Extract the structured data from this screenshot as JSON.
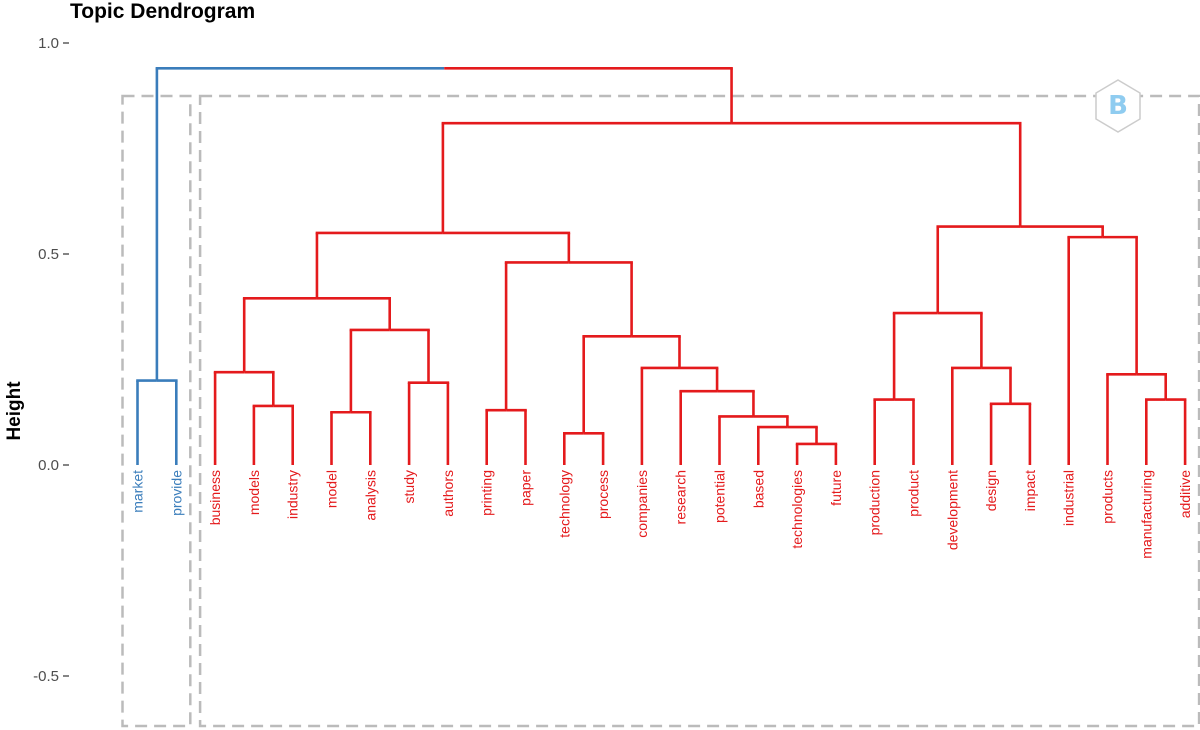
{
  "chart_data": {
    "type": "dendrogram",
    "title": "Topic Dendrogram",
    "ylabel": "Height",
    "xlabel": "",
    "ylim": [
      -0.6,
      1.0
    ],
    "yticks": [
      "-0.5",
      "0.0",
      "0.5",
      "1.0"
    ],
    "ytick_values": [
      -0.5,
      0.0,
      0.5,
      1.0
    ],
    "grid": false,
    "colors": {
      "cluster1": "#3a7dbb",
      "cluster2": "#e41a1c",
      "rect": "#bbbbbb",
      "badge": "#55aadd"
    },
    "leaves": [
      {
        "label": "market",
        "cluster": 1
      },
      {
        "label": "provide",
        "cluster": 1
      },
      {
        "label": "business",
        "cluster": 2
      },
      {
        "label": "models",
        "cluster": 2
      },
      {
        "label": "industry",
        "cluster": 2
      },
      {
        "label": "model",
        "cluster": 2
      },
      {
        "label": "analysis",
        "cluster": 2
      },
      {
        "label": "study",
        "cluster": 2
      },
      {
        "label": "authors",
        "cluster": 2
      },
      {
        "label": "printing",
        "cluster": 2
      },
      {
        "label": "paper",
        "cluster": 2
      },
      {
        "label": "technology",
        "cluster": 2
      },
      {
        "label": "process",
        "cluster": 2
      },
      {
        "label": "companies",
        "cluster": 2
      },
      {
        "label": "research",
        "cluster": 2
      },
      {
        "label": "potential",
        "cluster": 2
      },
      {
        "label": "based",
        "cluster": 2
      },
      {
        "label": "technologies",
        "cluster": 2
      },
      {
        "label": "future",
        "cluster": 2
      },
      {
        "label": "production",
        "cluster": 2
      },
      {
        "label": "product",
        "cluster": 2
      },
      {
        "label": "development",
        "cluster": 2
      },
      {
        "label": "design",
        "cluster": 2
      },
      {
        "label": "impact",
        "cluster": 2
      },
      {
        "label": "industrial",
        "cluster": 2
      },
      {
        "label": "products",
        "cluster": 2
      },
      {
        "label": "manufacturing",
        "cluster": 2
      },
      {
        "label": "additive",
        "cluster": 2
      }
    ],
    "merges": [
      {
        "left": "L0",
        "right": "L1",
        "height": 0.2,
        "cluster": 1
      },
      {
        "left": "L3",
        "right": "L4",
        "height": 0.14,
        "cluster": 2
      },
      {
        "left": "L2",
        "right": "M1",
        "height": 0.22,
        "cluster": 2
      },
      {
        "left": "L5",
        "right": "L6",
        "height": 0.125,
        "cluster": 2
      },
      {
        "left": "L7",
        "right": "L8",
        "height": 0.195,
        "cluster": 2
      },
      {
        "left": "M3",
        "right": "M4",
        "height": 0.32,
        "cluster": 2
      },
      {
        "left": "M2",
        "right": "M5",
        "height": 0.395,
        "cluster": 2
      },
      {
        "left": "L9",
        "right": "L10",
        "height": 0.13,
        "cluster": 2
      },
      {
        "left": "L11",
        "right": "L12",
        "height": 0.075,
        "cluster": 2
      },
      {
        "left": "L17",
        "right": "L18",
        "height": 0.05,
        "cluster": 2
      },
      {
        "left": "L16",
        "right": "M9",
        "height": 0.09,
        "cluster": 2
      },
      {
        "left": "L15",
        "right": "M10",
        "height": 0.115,
        "cluster": 2
      },
      {
        "left": "L14",
        "right": "M11",
        "height": 0.175,
        "cluster": 2
      },
      {
        "left": "L13",
        "right": "M12",
        "height": 0.23,
        "cluster": 2
      },
      {
        "left": "M8",
        "right": "M13",
        "height": 0.305,
        "cluster": 2
      },
      {
        "left": "M7",
        "right": "M14",
        "height": 0.48,
        "cluster": 2
      },
      {
        "left": "M6",
        "right": "M15",
        "height": 0.55,
        "cluster": 2
      },
      {
        "left": "L19",
        "right": "L20",
        "height": 0.155,
        "cluster": 2
      },
      {
        "left": "L22",
        "right": "L23",
        "height": 0.145,
        "cluster": 2
      },
      {
        "left": "L21",
        "right": "M18",
        "height": 0.23,
        "cluster": 2
      },
      {
        "left": "M17",
        "right": "M19",
        "height": 0.36,
        "cluster": 2
      },
      {
        "left": "L26",
        "right": "L27",
        "height": 0.155,
        "cluster": 2
      },
      {
        "left": "L25",
        "right": "M21",
        "height": 0.215,
        "cluster": 2
      },
      {
        "left": "L24",
        "right": "M22",
        "height": 0.54,
        "cluster": 2
      },
      {
        "left": "M20",
        "right": "M23",
        "height": 0.565,
        "cluster": 2
      },
      {
        "left": "M16",
        "right": "M24",
        "height": 0.81,
        "cluster": 2
      },
      {
        "left": "M0",
        "right": "M25",
        "height": 0.94,
        "cluster": 0
      }
    ],
    "cluster_rects": [
      {
        "from_leaf": 0,
        "to_leaf": 1
      },
      {
        "from_leaf": 2,
        "to_leaf": 27
      }
    ]
  }
}
